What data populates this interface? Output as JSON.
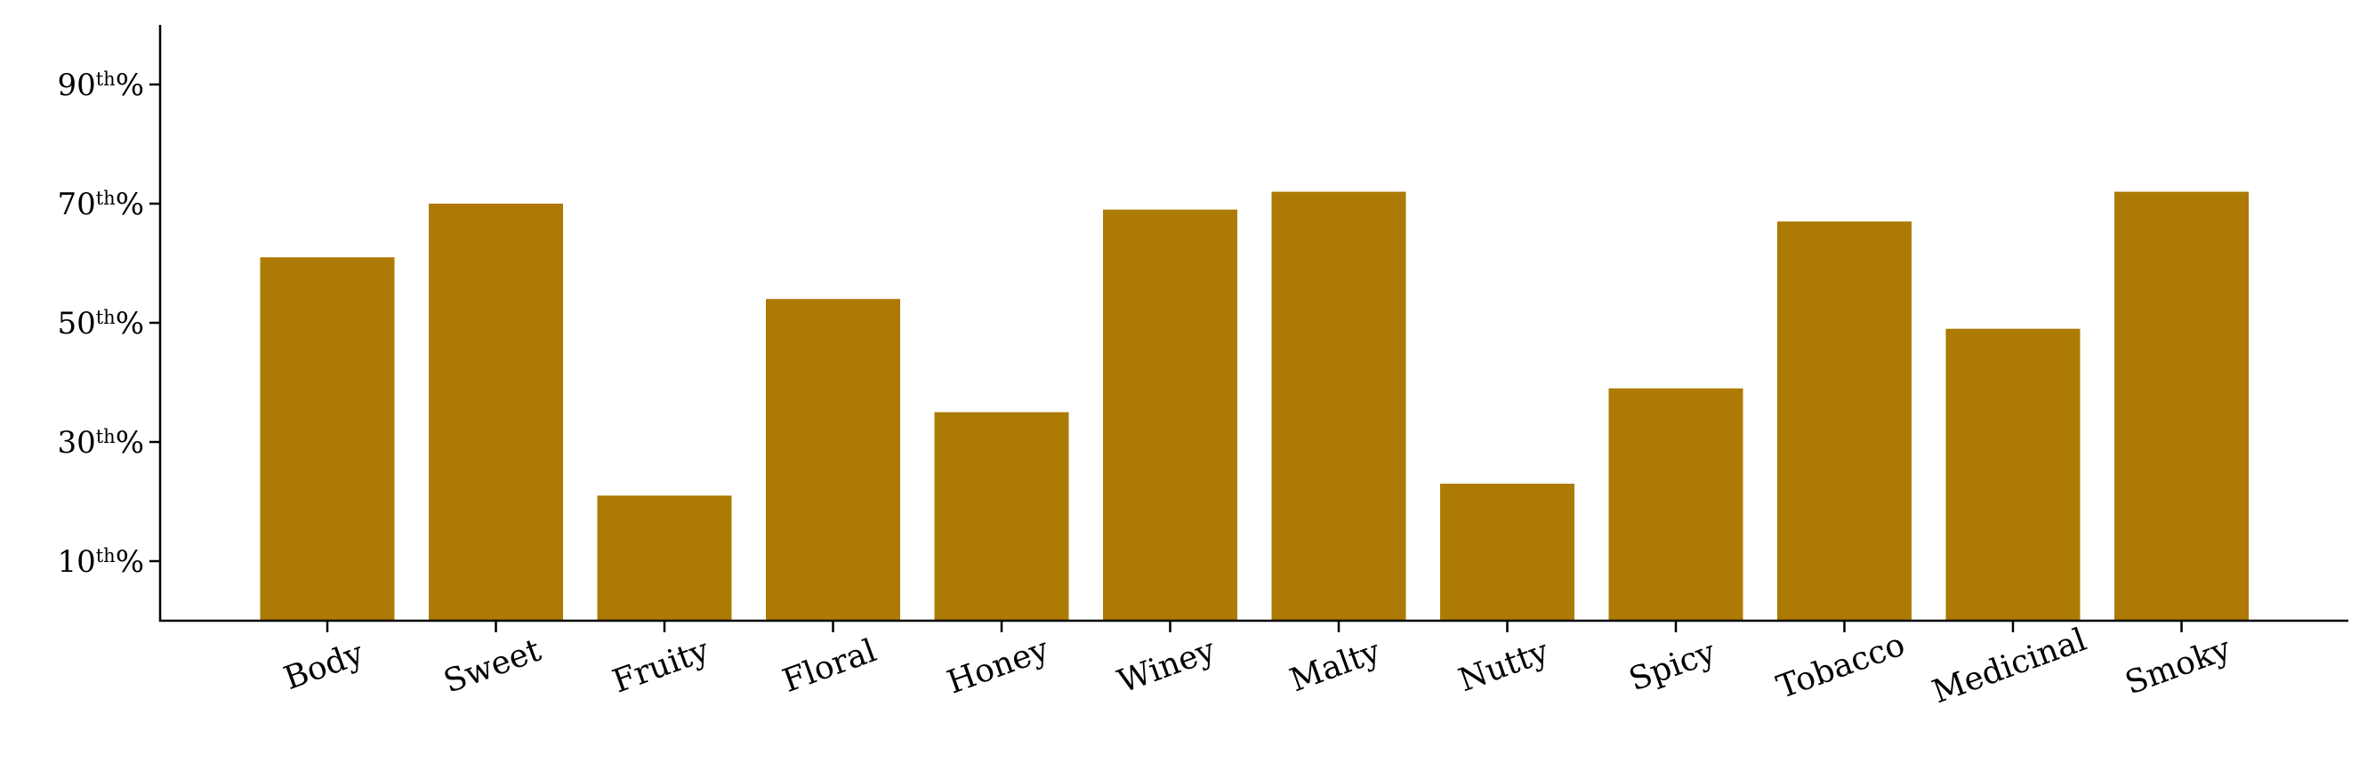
{
  "chart_data": {
    "type": "bar",
    "title": "",
    "xlabel": "",
    "ylabel": "",
    "categories": [
      "Body",
      "Sweet",
      "Fruity",
      "Floral",
      "Honey",
      "Winey",
      "Malty",
      "Nutty",
      "Spicy",
      "Tobacco",
      "Medicinal",
      "Smoky"
    ],
    "values": [
      61,
      70,
      21,
      54,
      35,
      69,
      72,
      23,
      39,
      67,
      49,
      72
    ],
    "ylim": [
      0,
      100
    ],
    "yticks": [
      {
        "value": 10,
        "num": "10",
        "sup": "th",
        "unit": "%"
      },
      {
        "value": 30,
        "num": "30",
        "sup": "th",
        "unit": "%"
      },
      {
        "value": 50,
        "num": "50",
        "sup": "th",
        "unit": "%"
      },
      {
        "value": 70,
        "num": "70",
        "sup": "th",
        "unit": "%"
      },
      {
        "value": 90,
        "num": "90",
        "sup": "th",
        "unit": "%"
      }
    ],
    "bar_color": "#ad7b05",
    "grid": false,
    "x_tick_rotation_deg": -20
  }
}
